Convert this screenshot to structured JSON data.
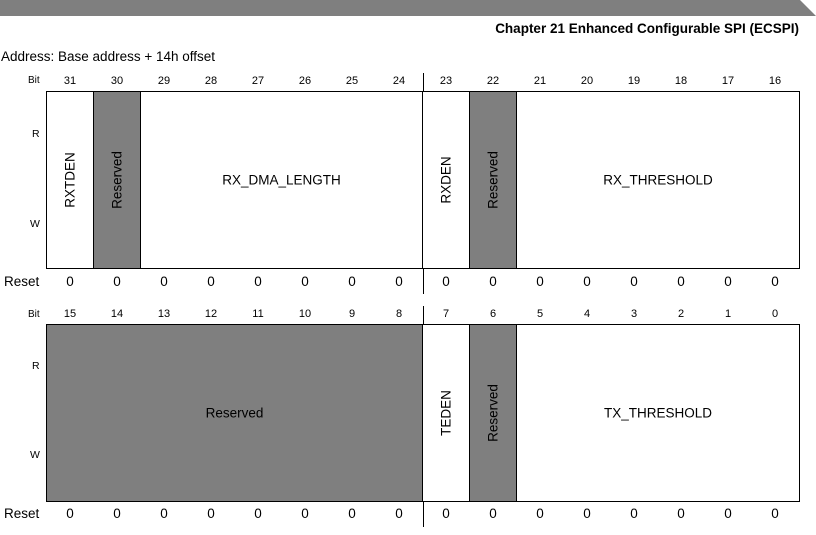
{
  "header": {
    "chapter_title": "Chapter 21 Enhanced Configurable SPI (ECSPI)"
  },
  "address_line": "Address: Base address + 14h offset",
  "labels": {
    "bit": "Bit",
    "read": "R",
    "write": "W",
    "reset": "Reset"
  },
  "upper": {
    "bits": [
      "31",
      "30",
      "29",
      "28",
      "27",
      "26",
      "25",
      "24",
      "23",
      "22",
      "21",
      "20",
      "19",
      "18",
      "17",
      "16"
    ],
    "fields": [
      {
        "name": "RXTDEN",
        "reserved": false,
        "vertical": true
      },
      {
        "name": "Reserved",
        "reserved": true,
        "vertical": true
      },
      {
        "name": "RX_DMA_LENGTH",
        "reserved": false,
        "vertical": false
      },
      {
        "name": "RXDEN",
        "reserved": false,
        "vertical": true
      },
      {
        "name": "Reserved",
        "reserved": true,
        "vertical": true
      },
      {
        "name": "RX_THRESHOLD",
        "reserved": false,
        "vertical": false
      }
    ],
    "reset": [
      "0",
      "0",
      "0",
      "0",
      "0",
      "0",
      "0",
      "0",
      "0",
      "0",
      "0",
      "0",
      "0",
      "0",
      "0",
      "0"
    ]
  },
  "lower": {
    "bits": [
      "15",
      "14",
      "13",
      "12",
      "11",
      "10",
      "9",
      "8",
      "7",
      "6",
      "5",
      "4",
      "3",
      "2",
      "1",
      "0"
    ],
    "fields": [
      {
        "name": "Reserved",
        "reserved": true,
        "vertical": false
      },
      {
        "name": "TEDEN",
        "reserved": false,
        "vertical": true
      },
      {
        "name": "Reserved",
        "reserved": true,
        "vertical": true
      },
      {
        "name": "TX_THRESHOLD",
        "reserved": false,
        "vertical": false
      }
    ],
    "reset": [
      "0",
      "0",
      "0",
      "0",
      "0",
      "0",
      "0",
      "0",
      "0",
      "0",
      "0",
      "0",
      "0",
      "0",
      "0",
      "0"
    ]
  }
}
